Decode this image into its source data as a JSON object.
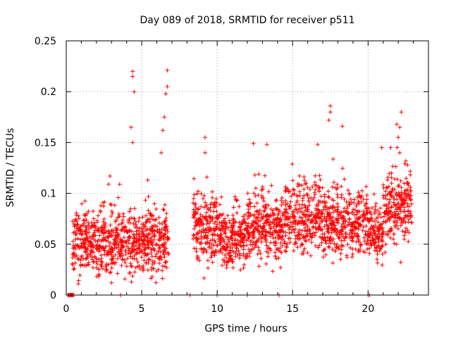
{
  "chart_data": {
    "type": "scatter",
    "title": "Day 089 of 2018, SRMTID for receiver p511",
    "xlabel": "GPS time / hours",
    "ylabel": "SRMTID / TECUs",
    "xlim": [
      0,
      24
    ],
    "ylim": [
      0,
      0.25
    ],
    "xticks": [
      0,
      5,
      10,
      15,
      20
    ],
    "xtick_labels": [
      "0",
      "5",
      "10",
      "15",
      "20"
    ],
    "yticks": [
      0,
      0.05,
      0.1,
      0.15,
      0.2,
      0.25
    ],
    "ytick_labels": [
      "0",
      "0.05",
      "0.1",
      "0.15",
      "0.2",
      "0.25"
    ],
    "grid": true,
    "marker": "+",
    "marker_color": "#ff0000",
    "series": [
      {
        "name": "SRMTID",
        "segments": [
          {
            "start": 0.4,
            "end": 6.8,
            "base": 0.052,
            "spread": 0.022
          },
          {
            "start": 8.4,
            "end": 10.2,
            "base": 0.065,
            "spread": 0.022
          },
          {
            "start": 10.2,
            "end": 12.0,
            "base": 0.055,
            "spread": 0.02
          },
          {
            "start": 12.0,
            "end": 14.5,
            "base": 0.066,
            "spread": 0.022
          },
          {
            "start": 14.5,
            "end": 17.0,
            "base": 0.075,
            "spread": 0.022
          },
          {
            "start": 17.0,
            "end": 20.0,
            "base": 0.07,
            "spread": 0.022
          },
          {
            "start": 20.0,
            "end": 21.0,
            "base": 0.062,
            "spread": 0.02
          },
          {
            "start": 21.0,
            "end": 22.9,
            "base": 0.085,
            "spread": 0.025
          }
        ],
        "peaks": [
          {
            "x": 4.4,
            "y": 0.22
          },
          {
            "x": 4.4,
            "y": 0.215
          },
          {
            "x": 4.5,
            "y": 0.2
          },
          {
            "x": 4.3,
            "y": 0.165
          },
          {
            "x": 4.4,
            "y": 0.15
          },
          {
            "x": 6.7,
            "y": 0.221
          },
          {
            "x": 6.7,
            "y": 0.205
          },
          {
            "x": 6.6,
            "y": 0.198
          },
          {
            "x": 6.5,
            "y": 0.175
          },
          {
            "x": 6.4,
            "y": 0.162
          },
          {
            "x": 6.3,
            "y": 0.14
          },
          {
            "x": 9.2,
            "y": 0.155
          },
          {
            "x": 9.2,
            "y": 0.14
          },
          {
            "x": 12.4,
            "y": 0.149
          },
          {
            "x": 13.3,
            "y": 0.148
          },
          {
            "x": 17.5,
            "y": 0.186
          },
          {
            "x": 17.5,
            "y": 0.18
          },
          {
            "x": 17.4,
            "y": 0.172
          },
          {
            "x": 18.3,
            "y": 0.166
          },
          {
            "x": 21.9,
            "y": 0.168
          },
          {
            "x": 22.2,
            "y": 0.18
          },
          {
            "x": 22.1,
            "y": 0.165
          },
          {
            "x": 22.0,
            "y": 0.155
          },
          {
            "x": 22.1,
            "y": 0.14
          },
          {
            "x": 21.5,
            "y": 0.145
          },
          {
            "x": 20.9,
            "y": 0.145
          },
          {
            "x": 0.8,
            "y": 0.011
          },
          {
            "x": 2.2,
            "y": 0.02
          },
          {
            "x": 3.0,
            "y": 0.012
          },
          {
            "x": 2.9,
            "y": 0.117
          },
          {
            "x": 2.8,
            "y": 0.109
          },
          {
            "x": 5.4,
            "y": 0.113
          },
          {
            "x": 12.5,
            "y": 0.118
          },
          {
            "x": 14.2,
            "y": 0.027
          },
          {
            "x": 15.9,
            "y": 0.11
          }
        ],
        "zero_points": [
          0.1,
          0.15,
          0.2,
          0.25,
          0.3,
          0.35,
          0.4,
          0.45,
          0.5,
          3.6,
          8.2,
          10.0,
          12.0,
          14.1,
          20.0,
          20.1
        ]
      }
    ]
  }
}
